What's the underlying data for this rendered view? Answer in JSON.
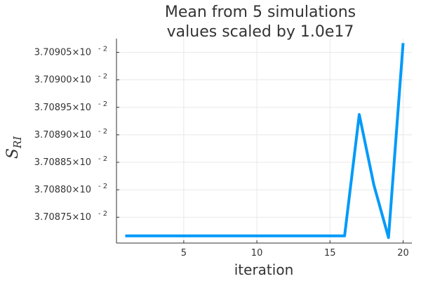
{
  "chart_data": {
    "type": "line",
    "title_line1": "Mean from 5 simulations",
    "title_line2": "values scaled by 1.0e17",
    "xlabel": "iteration",
    "ylabel_main": "S",
    "ylabel_sub": "RI",
    "xlim": [
      0.4,
      20.6
    ],
    "ylim": [
      3.708703,
      3.709075
    ],
    "x_ticks": [
      5,
      10,
      15,
      20
    ],
    "y_ticks": [
      {
        "value": 3.70875,
        "mantissa": "3.70875×10",
        "exponent": "- 2"
      },
      {
        "value": 3.7088,
        "mantissa": "3.70880×10",
        "exponent": "- 2"
      },
      {
        "value": 3.70885,
        "mantissa": "3.70885×10",
        "exponent": "- 2"
      },
      {
        "value": 3.7089,
        "mantissa": "3.70890×10",
        "exponent": "- 2"
      },
      {
        "value": 3.70895,
        "mantissa": "3.70895×10",
        "exponent": "- 2"
      },
      {
        "value": 3.709,
        "mantissa": "3.70900×10",
        "exponent": "- 2"
      },
      {
        "value": 3.70905,
        "mantissa": "3.70905×10",
        "exponent": "- 2"
      }
    ],
    "grid": true,
    "series": [
      {
        "color": "#009af9",
        "x": [
          1,
          2,
          3,
          4,
          5,
          6,
          7,
          8,
          9,
          10,
          11,
          12,
          13,
          14,
          15,
          16,
          17,
          18,
          19,
          20
        ],
        "values": [
          3.708716,
          3.708716,
          3.708716,
          3.708716,
          3.708716,
          3.708716,
          3.708716,
          3.708716,
          3.708716,
          3.708716,
          3.708716,
          3.708716,
          3.708716,
          3.708716,
          3.708716,
          3.708716,
          3.708937,
          3.708809,
          3.708713,
          3.709067
        ]
      }
    ]
  }
}
